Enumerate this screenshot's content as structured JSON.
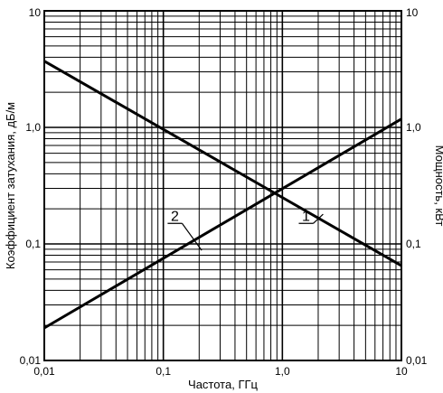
{
  "chart_data": {
    "type": "line",
    "x_scale": "log",
    "y_scale": "log",
    "xlim": [
      0.01,
      10
    ],
    "ylim": [
      0.01,
      10
    ],
    "grid": true,
    "xlabel": "Частота, ГГц",
    "ylabel_left": "Коэффициент затухания, дБ/м",
    "ylabel_right": "Мощность, кВт",
    "x_tick_labels": [
      "0,01",
      "0,1",
      "1,0",
      "10"
    ],
    "y_tick_labels_left": [
      "0,01",
      "0,1",
      "1,0",
      "10"
    ],
    "y_tick_labels_right": [
      "0,01",
      "0,1",
      "1,0",
      "10"
    ],
    "series": [
      {
        "name": "1",
        "x": [
          0.01,
          10
        ],
        "y": [
          3.7,
          0.065
        ]
      },
      {
        "name": "2",
        "x": [
          0.01,
          10
        ],
        "y": [
          0.019,
          1.18
        ]
      }
    ],
    "annotations": [
      {
        "text": "1",
        "label_x": 1.58,
        "label_y": 0.15,
        "point_x": 2.2,
        "point_y": 0.18
      },
      {
        "text": "2",
        "label_x": 0.125,
        "label_y": 0.15,
        "point_x": 0.21,
        "point_y": 0.088
      }
    ]
  }
}
